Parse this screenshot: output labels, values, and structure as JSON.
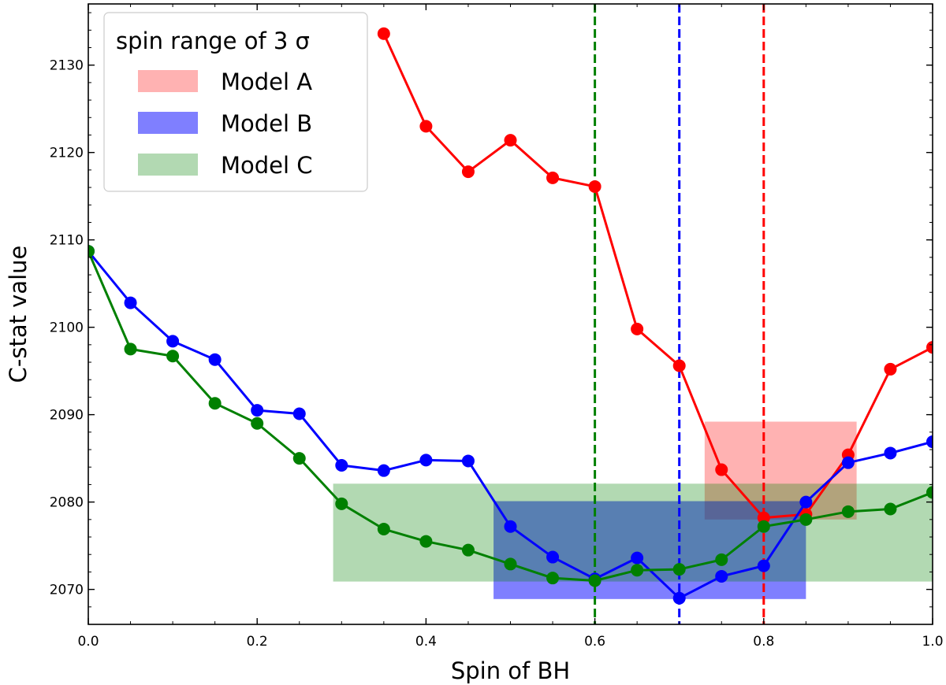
{
  "chart_data": {
    "type": "line",
    "title": "",
    "xlabel": "Spin of BH",
    "ylabel": "C-stat value",
    "xlim": [
      0.0,
      1.0
    ],
    "ylim": [
      2066,
      2137
    ],
    "xticks": [
      0.0,
      0.2,
      0.4,
      0.6,
      0.8,
      1.0
    ],
    "xtick_labels": [
      "0.0",
      "0.2",
      "0.4",
      "0.6",
      "0.8",
      "1.0"
    ],
    "yticks": [
      2070,
      2080,
      2090,
      2100,
      2110,
      2120,
      2130
    ],
    "ytick_labels": [
      "2070",
      "2080",
      "2090",
      "2100",
      "2110",
      "2120",
      "2130"
    ],
    "legend": {
      "title": "spin range of 3 σ",
      "placement": "top-left",
      "entries": [
        "Model A",
        "Model B",
        "Model C"
      ]
    },
    "series": [
      {
        "name": "Model A",
        "color": "#ff0000",
        "x": [
          0.35,
          0.4,
          0.45,
          0.5,
          0.55,
          0.6,
          0.65,
          0.7,
          0.75,
          0.8,
          0.85,
          0.9,
          0.95,
          1.0
        ],
        "y": [
          2133.6,
          2123.0,
          2117.8,
          2121.4,
          2117.1,
          2116.1,
          2099.8,
          2095.6,
          2083.7,
          2078.2,
          2078.6,
          2085.4,
          2095.2,
          2097.7
        ]
      },
      {
        "name": "Model B",
        "color": "#0000ff",
        "x": [
          0.0,
          0.05,
          0.1,
          0.15,
          0.2,
          0.25,
          0.3,
          0.35,
          0.4,
          0.45,
          0.5,
          0.55,
          0.6,
          0.65,
          0.7,
          0.75,
          0.8,
          0.85,
          0.9,
          0.95,
          1.0
        ],
        "y": [
          2108.7,
          2102.8,
          2098.4,
          2096.3,
          2090.5,
          2090.1,
          2084.2,
          2083.6,
          2084.8,
          2084.7,
          2077.2,
          2073.7,
          2071.2,
          2073.6,
          2069.0,
          2071.5,
          2072.7,
          2080.0,
          2084.5,
          2085.6,
          2086.9
        ]
      },
      {
        "name": "Model C",
        "color": "#008000",
        "x": [
          0.0,
          0.05,
          0.1,
          0.15,
          0.2,
          0.25,
          0.3,
          0.35,
          0.4,
          0.45,
          0.5,
          0.55,
          0.6,
          0.65,
          0.7,
          0.75,
          0.8,
          0.85,
          0.9,
          0.95,
          1.0
        ],
        "y": [
          2108.7,
          2097.5,
          2096.7,
          2091.3,
          2089.0,
          2085.0,
          2079.8,
          2076.9,
          2075.5,
          2074.5,
          2072.9,
          2071.3,
          2071.0,
          2072.2,
          2072.3,
          2073.4,
          2077.2,
          2078.0,
          2078.9,
          2079.2,
          2081.1
        ]
      }
    ],
    "ranges": [
      {
        "name": "Model A",
        "color": "#ff0000",
        "opacity": 0.3,
        "x": [
          0.73,
          0.91
        ],
        "y": [
          2078.0,
          2089.2
        ]
      },
      {
        "name": "Model B",
        "color": "#0000ff",
        "opacity": 0.5,
        "x": [
          0.48,
          0.85
        ],
        "y": [
          2068.9,
          2080.1
        ]
      },
      {
        "name": "Model C",
        "color": "#008000",
        "opacity": 0.3,
        "x": [
          0.29,
          1.0
        ],
        "y": [
          2070.9,
          2082.1
        ]
      }
    ],
    "best_fit_lines": [
      {
        "name": "Model C",
        "color": "#008000",
        "x": 0.6
      },
      {
        "name": "Model B",
        "color": "#0000ff",
        "x": 0.7
      },
      {
        "name": "Model A",
        "color": "#ff0000",
        "x": 0.8
      }
    ]
  }
}
